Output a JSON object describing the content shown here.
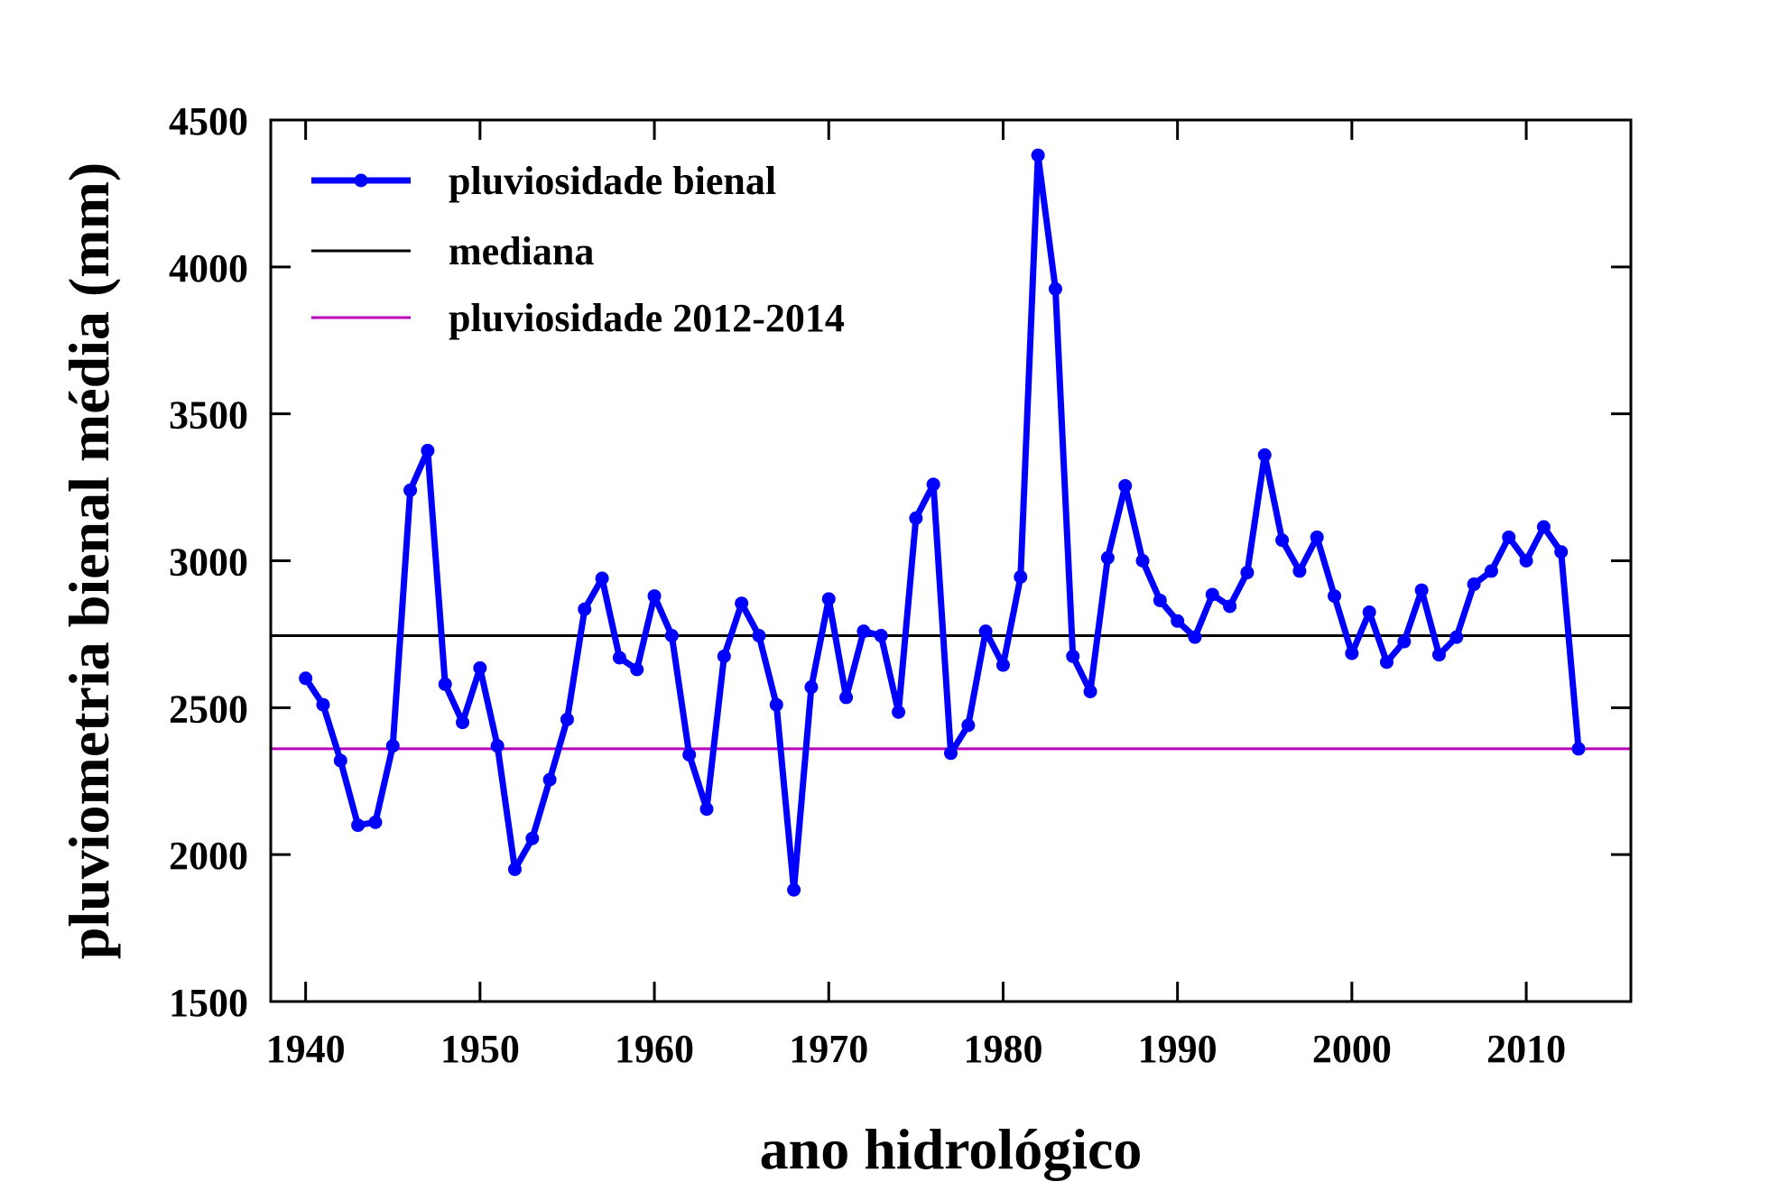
{
  "chart_data": {
    "type": "line",
    "title": "",
    "xlabel": "ano hidrológico",
    "ylabel": "pluviometria bienal média (mm)",
    "xlim": [
      1938,
      2016
    ],
    "ylim": [
      1500,
      4500
    ],
    "xticks": [
      1940,
      1950,
      1960,
      1970,
      1980,
      1990,
      2000,
      2010
    ],
    "yticks": [
      1500,
      2000,
      2500,
      3000,
      3500,
      4000,
      4500
    ],
    "grid": false,
    "legend_position": "top-left",
    "series": [
      {
        "name": "pluviosidade bienal",
        "color": "#0000ff",
        "marker": "circle",
        "x": [
          1940,
          1941,
          1942,
          1943,
          1944,
          1945,
          1946,
          1947,
          1948,
          1949,
          1950,
          1951,
          1952,
          1953,
          1954,
          1955,
          1956,
          1957,
          1958,
          1959,
          1960,
          1961,
          1962,
          1963,
          1964,
          1965,
          1966,
          1967,
          1968,
          1969,
          1970,
          1971,
          1972,
          1973,
          1974,
          1975,
          1976,
          1977,
          1978,
          1979,
          1980,
          1981,
          1982,
          1983,
          1984,
          1985,
          1986,
          1987,
          1988,
          1989,
          1990,
          1991,
          1992,
          1993,
          1994,
          1995,
          1996,
          1997,
          1998,
          1999,
          2000,
          2001,
          2002,
          2003,
          2004,
          2005,
          2006,
          2007,
          2008,
          2009,
          2010,
          2011,
          2012,
          2013
        ],
        "values": [
          2600,
          2510,
          2320,
          2100,
          2110,
          2370,
          3240,
          3375,
          2580,
          2450,
          2635,
          2370,
          1950,
          2055,
          2255,
          2460,
          2835,
          2940,
          2670,
          2630,
          2880,
          2745,
          2340,
          2155,
          2675,
          2855,
          2745,
          2510,
          1880,
          2570,
          2870,
          2535,
          2760,
          2745,
          2485,
          3145,
          3260,
          2345,
          2440,
          2760,
          2645,
          2945,
          4380,
          3925,
          2675,
          2555,
          3010,
          3255,
          3000,
          2865,
          2795,
          2740,
          2885,
          2845,
          2960,
          3360,
          3070,
          2965,
          3080,
          2880,
          2685,
          2825,
          2655,
          2725,
          2900,
          2680,
          2740,
          2920,
          2965,
          3080,
          3000,
          3115,
          3030,
          2360
        ]
      },
      {
        "name": "mediana",
        "color": "#000000",
        "value": 2745
      },
      {
        "name": "pluviosidade 2012-2014",
        "color": "#bb00bb",
        "value": 2360
      }
    ]
  }
}
